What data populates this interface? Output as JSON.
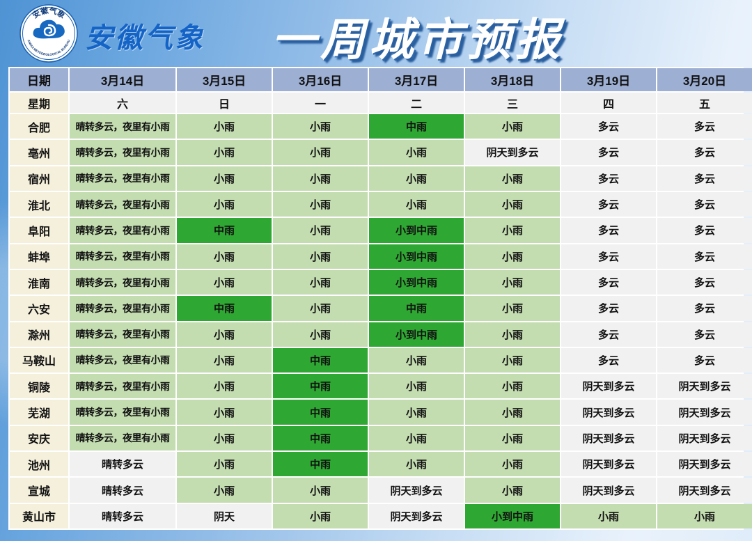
{
  "header": {
    "org_name": "安徽气象",
    "title": "一周城市预报",
    "logo": {
      "top_text": "安徽气象",
      "bottom_text": "ANHUI METEOROLOGICAL BUREAU"
    }
  },
  "colors": {
    "title_blue": "#1463c6",
    "title_shadow": "#2a5f9f",
    "date_row_bg": "#9dafd3",
    "city_col_bg": "#f5f0dc",
    "plain_cell_bg": "#f1f1f2",
    "light_rain_bg": "#c3dcb0",
    "moderate_rain_bg": "#2fa733",
    "background_left": "#4f93d4",
    "background_right": "#e9f2fc"
  },
  "table": {
    "corner_label": "日期",
    "week_label": "星期",
    "dates": [
      "3月14日",
      "3月15日",
      "3月16日",
      "3月17日",
      "3月18日",
      "3月19日",
      "3月20日"
    ],
    "weekdays": [
      "六",
      "日",
      "一",
      "二",
      "三",
      "四",
      "五"
    ],
    "rows": [
      {
        "city": "合肥",
        "cells": [
          {
            "t": "晴转多云，夜里有小雨",
            "s": "lg"
          },
          {
            "t": "小雨",
            "s": "lg"
          },
          {
            "t": "小雨",
            "s": "lg"
          },
          {
            "t": "中雨",
            "s": "bg"
          },
          {
            "t": "小雨",
            "s": "lg"
          },
          {
            "t": "多云",
            "s": "pl"
          },
          {
            "t": "多云",
            "s": "pl"
          }
        ]
      },
      {
        "city": "亳州",
        "cells": [
          {
            "t": "晴转多云，夜里有小雨",
            "s": "lg"
          },
          {
            "t": "小雨",
            "s": "lg"
          },
          {
            "t": "小雨",
            "s": "lg"
          },
          {
            "t": "小雨",
            "s": "lg"
          },
          {
            "t": "阴天到多云",
            "s": "pl"
          },
          {
            "t": "多云",
            "s": "pl"
          },
          {
            "t": "多云",
            "s": "pl"
          }
        ]
      },
      {
        "city": "宿州",
        "cells": [
          {
            "t": "晴转多云，夜里有小雨",
            "s": "lg"
          },
          {
            "t": "小雨",
            "s": "lg"
          },
          {
            "t": "小雨",
            "s": "lg"
          },
          {
            "t": "小雨",
            "s": "lg"
          },
          {
            "t": "小雨",
            "s": "lg"
          },
          {
            "t": "多云",
            "s": "pl"
          },
          {
            "t": "多云",
            "s": "pl"
          }
        ]
      },
      {
        "city": "淮北",
        "cells": [
          {
            "t": "晴转多云，夜里有小雨",
            "s": "lg"
          },
          {
            "t": "小雨",
            "s": "lg"
          },
          {
            "t": "小雨",
            "s": "lg"
          },
          {
            "t": "小雨",
            "s": "lg"
          },
          {
            "t": "小雨",
            "s": "lg"
          },
          {
            "t": "多云",
            "s": "pl"
          },
          {
            "t": "多云",
            "s": "pl"
          }
        ]
      },
      {
        "city": "阜阳",
        "cells": [
          {
            "t": "晴转多云，夜里有小雨",
            "s": "lg"
          },
          {
            "t": "中雨",
            "s": "bg"
          },
          {
            "t": "小雨",
            "s": "lg"
          },
          {
            "t": "小到中雨",
            "s": "bg"
          },
          {
            "t": "小雨",
            "s": "lg"
          },
          {
            "t": "多云",
            "s": "pl"
          },
          {
            "t": "多云",
            "s": "pl"
          }
        ]
      },
      {
        "city": "蚌埠",
        "cells": [
          {
            "t": "晴转多云，夜里有小雨",
            "s": "lg"
          },
          {
            "t": "小雨",
            "s": "lg"
          },
          {
            "t": "小雨",
            "s": "lg"
          },
          {
            "t": "小到中雨",
            "s": "bg"
          },
          {
            "t": "小雨",
            "s": "lg"
          },
          {
            "t": "多云",
            "s": "pl"
          },
          {
            "t": "多云",
            "s": "pl"
          }
        ]
      },
      {
        "city": "淮南",
        "cells": [
          {
            "t": "晴转多云，夜里有小雨",
            "s": "lg"
          },
          {
            "t": "小雨",
            "s": "lg"
          },
          {
            "t": "小雨",
            "s": "lg"
          },
          {
            "t": "小到中雨",
            "s": "bg"
          },
          {
            "t": "小雨",
            "s": "lg"
          },
          {
            "t": "多云",
            "s": "pl"
          },
          {
            "t": "多云",
            "s": "pl"
          }
        ]
      },
      {
        "city": "六安",
        "cells": [
          {
            "t": "晴转多云，夜里有小雨",
            "s": "lg"
          },
          {
            "t": "中雨",
            "s": "bg"
          },
          {
            "t": "小雨",
            "s": "lg"
          },
          {
            "t": "中雨",
            "s": "bg"
          },
          {
            "t": "小雨",
            "s": "lg"
          },
          {
            "t": "多云",
            "s": "pl"
          },
          {
            "t": "多云",
            "s": "pl"
          }
        ]
      },
      {
        "city": "滁州",
        "cells": [
          {
            "t": "晴转多云，夜里有小雨",
            "s": "lg"
          },
          {
            "t": "小雨",
            "s": "lg"
          },
          {
            "t": "小雨",
            "s": "lg"
          },
          {
            "t": "小到中雨",
            "s": "bg"
          },
          {
            "t": "小雨",
            "s": "lg"
          },
          {
            "t": "多云",
            "s": "pl"
          },
          {
            "t": "多云",
            "s": "pl"
          }
        ]
      },
      {
        "city": "马鞍山",
        "cells": [
          {
            "t": "晴转多云，夜里有小雨",
            "s": "lg"
          },
          {
            "t": "小雨",
            "s": "lg"
          },
          {
            "t": "中雨",
            "s": "bg"
          },
          {
            "t": "小雨",
            "s": "lg"
          },
          {
            "t": "小雨",
            "s": "lg"
          },
          {
            "t": "多云",
            "s": "pl"
          },
          {
            "t": "多云",
            "s": "pl"
          }
        ]
      },
      {
        "city": "铜陵",
        "cells": [
          {
            "t": "晴转多云，夜里有小雨",
            "s": "lg"
          },
          {
            "t": "小雨",
            "s": "lg"
          },
          {
            "t": "中雨",
            "s": "bg"
          },
          {
            "t": "小雨",
            "s": "lg"
          },
          {
            "t": "小雨",
            "s": "lg"
          },
          {
            "t": "阴天到多云",
            "s": "pl"
          },
          {
            "t": "阴天到多云",
            "s": "pl"
          }
        ]
      },
      {
        "city": "芜湖",
        "cells": [
          {
            "t": "晴转多云，夜里有小雨",
            "s": "lg"
          },
          {
            "t": "小雨",
            "s": "lg"
          },
          {
            "t": "中雨",
            "s": "bg"
          },
          {
            "t": "小雨",
            "s": "lg"
          },
          {
            "t": "小雨",
            "s": "lg"
          },
          {
            "t": "阴天到多云",
            "s": "pl"
          },
          {
            "t": "阴天到多云",
            "s": "pl"
          }
        ]
      },
      {
        "city": "安庆",
        "cells": [
          {
            "t": "晴转多云，夜里有小雨",
            "s": "lg"
          },
          {
            "t": "小雨",
            "s": "lg"
          },
          {
            "t": "中雨",
            "s": "bg"
          },
          {
            "t": "小雨",
            "s": "lg"
          },
          {
            "t": "小雨",
            "s": "lg"
          },
          {
            "t": "阴天到多云",
            "s": "pl"
          },
          {
            "t": "阴天到多云",
            "s": "pl"
          }
        ]
      },
      {
        "city": "池州",
        "cells": [
          {
            "t": "晴转多云",
            "s": "pl"
          },
          {
            "t": "小雨",
            "s": "lg"
          },
          {
            "t": "中雨",
            "s": "bg"
          },
          {
            "t": "小雨",
            "s": "lg"
          },
          {
            "t": "小雨",
            "s": "lg"
          },
          {
            "t": "阴天到多云",
            "s": "pl"
          },
          {
            "t": "阴天到多云",
            "s": "pl"
          }
        ]
      },
      {
        "city": "宣城",
        "cells": [
          {
            "t": "晴转多云",
            "s": "pl"
          },
          {
            "t": "小雨",
            "s": "lg"
          },
          {
            "t": "小雨",
            "s": "lg"
          },
          {
            "t": "阴天到多云",
            "s": "pl"
          },
          {
            "t": "小雨",
            "s": "lg"
          },
          {
            "t": "阴天到多云",
            "s": "pl"
          },
          {
            "t": "阴天到多云",
            "s": "pl"
          }
        ]
      },
      {
        "city": "黄山市",
        "cells": [
          {
            "t": "晴转多云",
            "s": "pl"
          },
          {
            "t": "阴天",
            "s": "pl"
          },
          {
            "t": "小雨",
            "s": "lg"
          },
          {
            "t": "阴天到多云",
            "s": "pl"
          },
          {
            "t": "小到中雨",
            "s": "bg"
          },
          {
            "t": "小雨",
            "s": "lg"
          },
          {
            "t": "小雨",
            "s": "lg"
          }
        ]
      }
    ]
  }
}
